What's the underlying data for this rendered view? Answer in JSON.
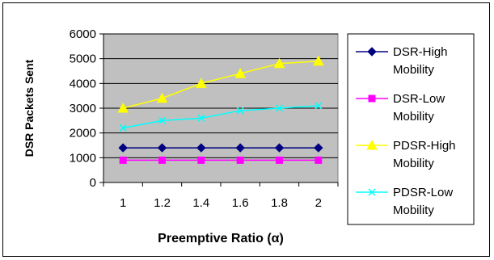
{
  "chart_data": {
    "type": "line",
    "xlabel": "Preemptive Ratio (α)",
    "ylabel": "DSR Packets Sent",
    "x_ticks": [
      "1",
      "1.2",
      "1.4",
      "1.6",
      "1.8",
      "2"
    ],
    "ylim": [
      0,
      6000
    ],
    "y_ticks": [
      0,
      1000,
      2000,
      3000,
      4000,
      5000,
      6000
    ],
    "grid": true,
    "plot_background": "#c0c0c0",
    "legend_position": "right",
    "series": [
      {
        "name": "DSR-High Mobility",
        "legend_lines": [
          "DSR-High",
          "Mobility"
        ],
        "color": "#000080",
        "marker": "diamond",
        "values": [
          1400,
          1400,
          1400,
          1400,
          1400,
          1400
        ]
      },
      {
        "name": "DSR-Low Mobility",
        "legend_lines": [
          "DSR-Low",
          "Mobility"
        ],
        "color": "#ff00ff",
        "marker": "square",
        "values": [
          900,
          900,
          900,
          900,
          900,
          900
        ]
      },
      {
        "name": "PDSR-High Mobility",
        "legend_lines": [
          "PDSR-High",
          "Mobility"
        ],
        "color": "#ffff00",
        "marker": "triangle",
        "values": [
          3000,
          3400,
          4000,
          4400,
          4800,
          4900
        ]
      },
      {
        "name": "PDSR-Low Mobility",
        "legend_lines": [
          "PDSR-Low",
          "Mobility"
        ],
        "color": "#00ffff",
        "marker": "x",
        "values": [
          2200,
          2500,
          2600,
          2900,
          3000,
          3100
        ]
      }
    ]
  }
}
